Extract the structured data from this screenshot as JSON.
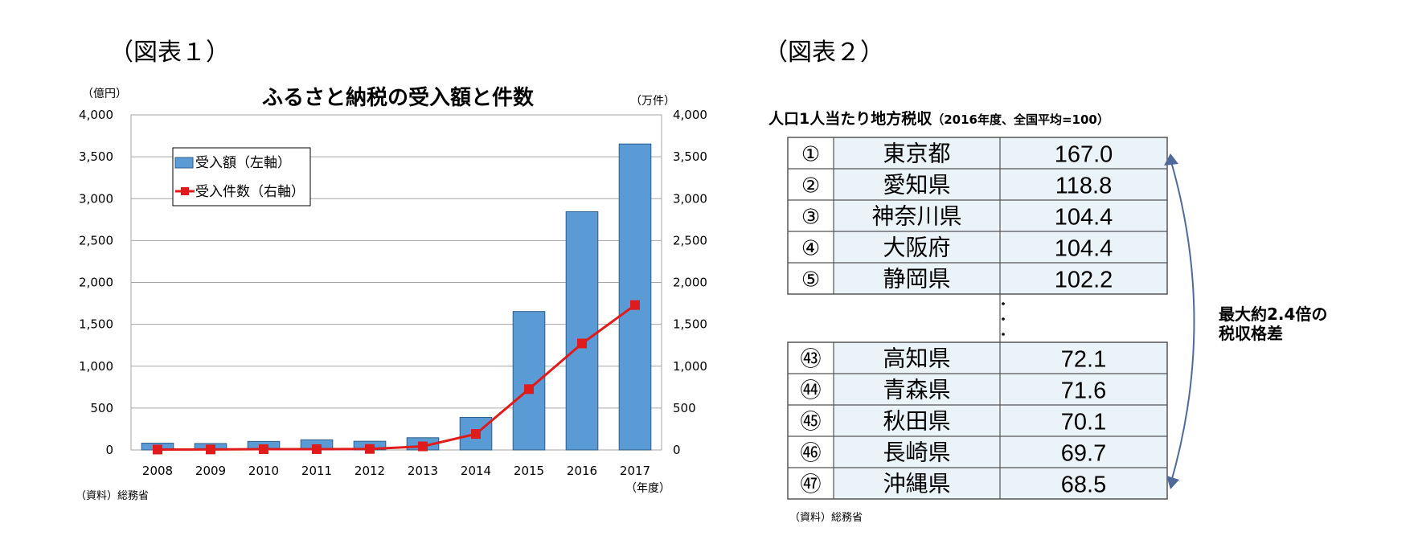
{
  "figure1": {
    "caption": "（図表１）",
    "title": "ふるさと納税の受入額と件数",
    "left_unit": "（億円）",
    "right_unit": "（万件）",
    "x_unit": "（年度）",
    "source": "（資料）総務省",
    "legend": {
      "bar": "受入額（左軸）",
      "line": "受入件数（右軸）"
    },
    "colors": {
      "bar": "#5b9bd5",
      "bar_border": "#2e5d8a",
      "line": "#e01b1b",
      "grid": "#a6a6a6"
    }
  },
  "chart_data": {
    "type": "bar",
    "title": "ふるさと納税の受入額と件数",
    "categories": [
      "2008",
      "2009",
      "2010",
      "2011",
      "2012",
      "2013",
      "2014",
      "2015",
      "2016",
      "2017"
    ],
    "series": [
      {
        "name": "受入額（左軸）",
        "type": "bar",
        "axis": "left",
        "values": [
          81,
          77,
          102,
          121,
          104,
          146,
          389,
          1653,
          2844,
          3653
        ]
      },
      {
        "name": "受入件数（右軸）",
        "type": "line",
        "axis": "right",
        "values": [
          5,
          6,
          9,
          10,
          12,
          43,
          191,
          726,
          1271,
          1730
        ]
      }
    ],
    "y_left": {
      "label": "（億円）",
      "ylim": [
        0,
        4000
      ],
      "ticks": [
        "0",
        "500",
        "1,000",
        "1,500",
        "2,000",
        "2,500",
        "3,000",
        "3,500",
        "4,000"
      ]
    },
    "y_right": {
      "label": "（万件）",
      "ylim": [
        0,
        4000
      ],
      "ticks": [
        "0",
        "500",
        "1,000",
        "1,500",
        "2,000",
        "2,500",
        "3,000",
        "3,500",
        "4,000"
      ]
    },
    "xlabel": "（年度）",
    "grid": true,
    "legend_position": "top-left"
  },
  "figure2": {
    "caption": "（図表２）",
    "title": "人口1人当たり地方税収",
    "title_sub": "（2016年度、全国平均=100）",
    "top_rows": [
      {
        "rank": "①",
        "pref": "東京都",
        "value": "167.0"
      },
      {
        "rank": "②",
        "pref": "愛知県",
        "value": "118.8"
      },
      {
        "rank": "③",
        "pref": "神奈川県",
        "value": "104.4"
      },
      {
        "rank": "④",
        "pref": "大阪府",
        "value": "104.4"
      },
      {
        "rank": "⑤",
        "pref": "静岡県",
        "value": "102.2"
      }
    ],
    "bottom_rows": [
      {
        "rank": "㊸",
        "pref": "高知県",
        "value": "72.1"
      },
      {
        "rank": "㊹",
        "pref": "青森県",
        "value": "71.6"
      },
      {
        "rank": "㊺",
        "pref": "秋田県",
        "value": "70.1"
      },
      {
        "rank": "㊻",
        "pref": "長崎県",
        "value": "69.7"
      },
      {
        "rank": "㊼",
        "pref": "沖縄県",
        "value": "68.5"
      }
    ],
    "note_line1": "最大約2.4倍の",
    "note_line2": "税収格差",
    "source": "（資料）総務省",
    "colors": {
      "rank_bg": "#eaf3f8",
      "border": "#555555",
      "arrow": "#4f6a9a"
    }
  }
}
